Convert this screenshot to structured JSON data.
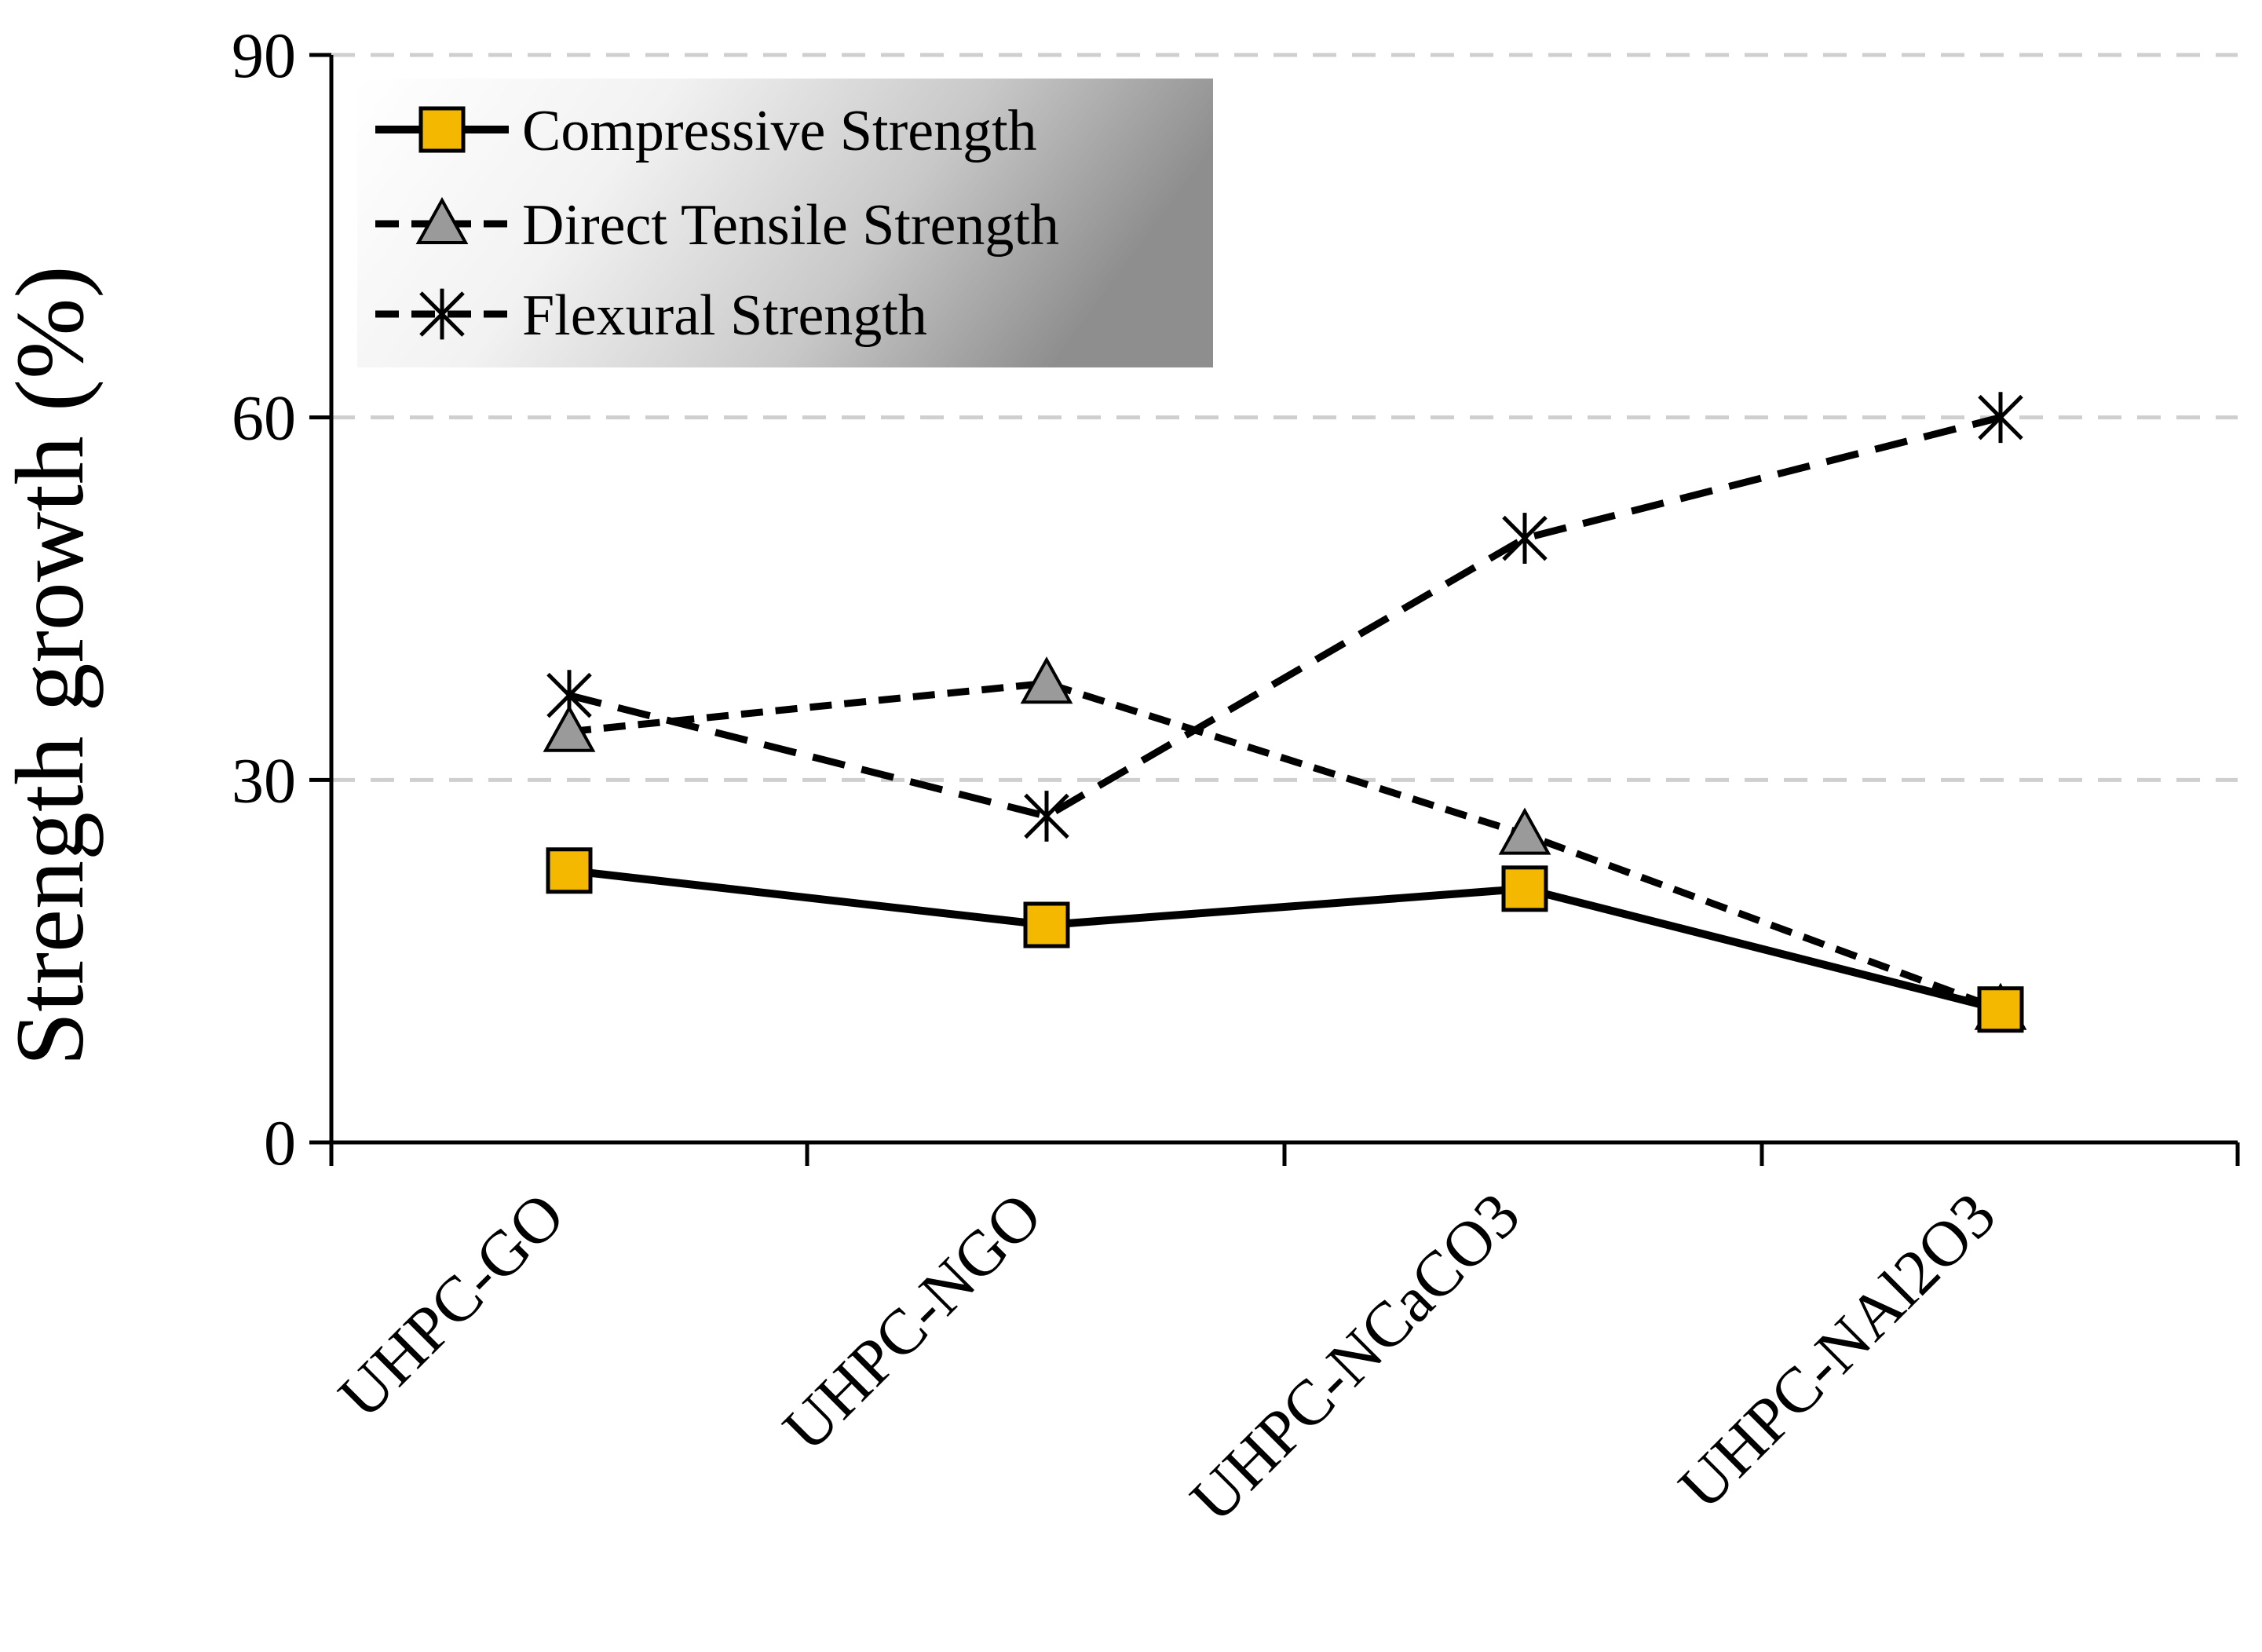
{
  "chart_data": {
    "type": "line",
    "title": "",
    "xlabel": "",
    "ylabel": "Strength growth (%)",
    "ylim": [
      0,
      90
    ],
    "yticks": [
      "0",
      "30",
      "60",
      "90"
    ],
    "grid": "horizontal dashed",
    "legend_position": "top-left",
    "categories": [
      "UHPC-GO",
      "UHPC-NGO",
      "UHPC-NCaCO3",
      "UHPC-NAl2O3"
    ],
    "series": [
      {
        "name": "Compressive Strength",
        "marker": "square",
        "line": "solid",
        "color": "#f5b800",
        "values": [
          22.5,
          18,
          21,
          11
        ]
      },
      {
        "name": "Direct Tensile Strength",
        "marker": "triangle",
        "line": "dashed",
        "color": "#9a9a9a",
        "values": [
          34,
          38,
          25.5,
          11
        ]
      },
      {
        "name": "Flexural Strength",
        "marker": "asterisk",
        "line": "dashed",
        "color": "#000000",
        "values": [
          37,
          27,
          50,
          60
        ]
      }
    ]
  }
}
